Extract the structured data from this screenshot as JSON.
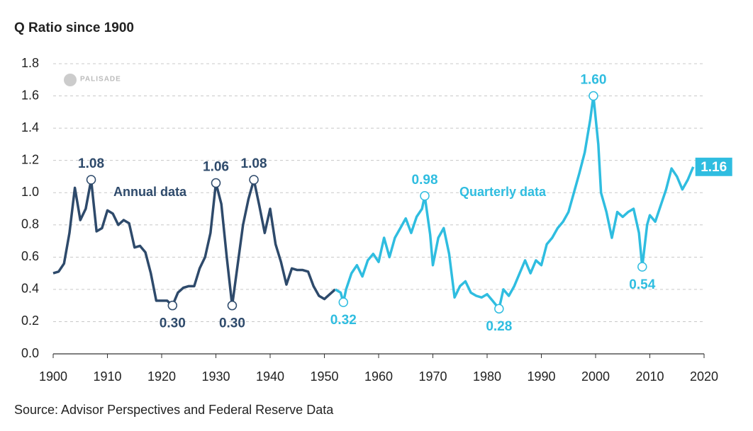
{
  "chart_data": {
    "type": "line",
    "title": "Q Ratio since 1900",
    "source": "Source: Advisor Perspectives and Federal Reserve Data",
    "logo": "PALISADE",
    "xlim": [
      1900,
      2020
    ],
    "xticks": [
      1900,
      1910,
      1920,
      1930,
      1940,
      1950,
      1960,
      1970,
      1980,
      1990,
      2000,
      2010,
      2020
    ],
    "ylim": [
      0,
      1.8
    ],
    "yticks": [
      {
        "value": 0,
        "label": "0.0"
      },
      0.2,
      0.4,
      0.6,
      0.8,
      {
        "value": 1,
        "label": "1.0"
      },
      1.2,
      1.4,
      1.6,
      1.8
    ],
    "grid": true,
    "series": [
      {
        "name": "Annual data",
        "color": "#2e4a6b",
        "x": [
          1900,
          1901,
          1902,
          1903,
          1904,
          1905,
          1906,
          1907,
          1908,
          1909,
          1910,
          1911,
          1912,
          1913,
          1914,
          1915,
          1916,
          1917,
          1918,
          1919,
          1920,
          1921,
          1922,
          1923,
          1924,
          1925,
          1926,
          1927,
          1928,
          1929,
          1930,
          1931,
          1932,
          1933,
          1934,
          1935,
          1936,
          1937,
          1938,
          1939,
          1940,
          1941,
          1942,
          1943,
          1944,
          1945,
          1946,
          1947,
          1948,
          1949,
          1950,
          1951,
          1952
        ],
        "values": [
          0.5,
          0.51,
          0.56,
          0.75,
          1.03,
          0.83,
          0.9,
          1.08,
          0.76,
          0.78,
          0.89,
          0.87,
          0.8,
          0.83,
          0.81,
          0.66,
          0.67,
          0.63,
          0.5,
          0.33,
          0.33,
          0.33,
          0.3,
          0.38,
          0.41,
          0.42,
          0.42,
          0.53,
          0.6,
          0.75,
          1.06,
          0.93,
          0.6,
          0.3,
          0.55,
          0.8,
          0.96,
          1.08,
          0.92,
          0.75,
          0.9,
          0.68,
          0.57,
          0.43,
          0.53,
          0.52,
          0.52,
          0.51,
          0.42,
          0.36,
          0.34,
          0.37,
          0.4
        ]
      },
      {
        "name": "Quarterly data",
        "color": "#2fbde0",
        "x": [
          1952,
          1953,
          1953.5,
          1954,
          1955,
          1956,
          1957,
          1958,
          1959,
          1960,
          1961,
          1962,
          1963,
          1964,
          1965,
          1966,
          1967,
          1968,
          1968.5,
          1969.5,
          1970,
          1971,
          1972,
          1973,
          1974,
          1975,
          1976,
          1977,
          1978,
          1979,
          1980,
          1981,
          1982.2,
          1983,
          1984,
          1985,
          1986,
          1987,
          1988,
          1989,
          1990,
          1991,
          1992,
          1993,
          1994,
          1995,
          1996,
          1997,
          1998,
          1999,
          1999.6,
          2000.5,
          2001,
          2002,
          2003,
          2004,
          2005,
          2006,
          2007,
          2008,
          2008.6,
          2009.5,
          2010,
          2011,
          2012,
          2013,
          2014,
          2015,
          2016,
          2017,
          2018
        ],
        "values": [
          0.4,
          0.38,
          0.32,
          0.4,
          0.5,
          0.55,
          0.48,
          0.58,
          0.62,
          0.57,
          0.72,
          0.6,
          0.72,
          0.78,
          0.84,
          0.75,
          0.85,
          0.9,
          0.98,
          0.74,
          0.55,
          0.72,
          0.78,
          0.62,
          0.35,
          0.42,
          0.45,
          0.38,
          0.36,
          0.35,
          0.37,
          0.33,
          0.28,
          0.4,
          0.36,
          0.42,
          0.5,
          0.58,
          0.5,
          0.58,
          0.55,
          0.68,
          0.72,
          0.78,
          0.82,
          0.88,
          1.0,
          1.12,
          1.25,
          1.45,
          1.6,
          1.3,
          1.0,
          0.88,
          0.72,
          0.88,
          0.85,
          0.88,
          0.9,
          0.75,
          0.54,
          0.8,
          0.86,
          0.82,
          0.92,
          1.02,
          1.15,
          1.1,
          1.02,
          1.08,
          1.16
        ]
      }
    ],
    "markers": {
      "x": [
        1907,
        1922,
        1930,
        1933,
        1937,
        1953.5,
        1968.5,
        1982.2,
        1999.6,
        2008.6
      ],
      "values": [
        1.08,
        0.3,
        1.06,
        0.3,
        1.08,
        0.32,
        0.98,
        0.28,
        1.6,
        0.54
      ],
      "value_labels": [
        "1.08",
        "0.30",
        "1.06",
        "0.30",
        "1.08",
        "0.32",
        "0.98",
        "0.28",
        "1.60",
        "0.54"
      ]
    },
    "end_label": {
      "x": 2018,
      "value": 1.16
    }
  }
}
